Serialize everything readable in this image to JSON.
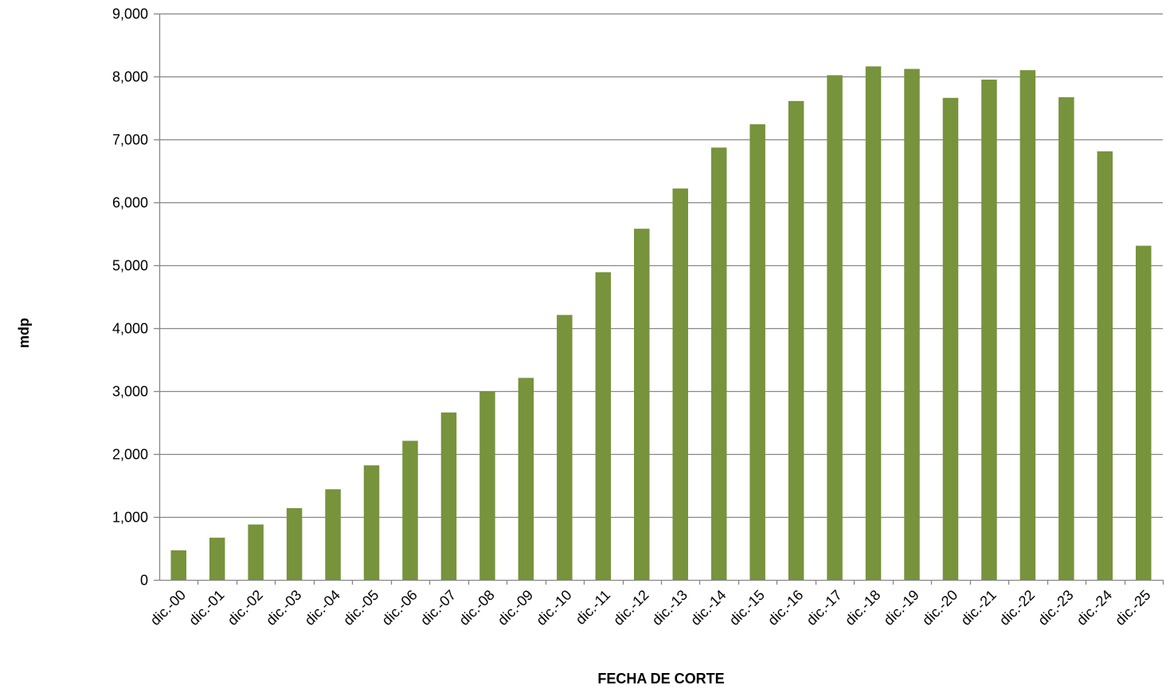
{
  "colors": {
    "bar": "#77933c",
    "grid": "#868686",
    "axis": "#868686",
    "text": "#000000"
  },
  "chart_data": {
    "type": "bar",
    "title": "",
    "xlabel": "FECHA DE CORTE",
    "ylabel": "mdp",
    "ylim": [
      0,
      9000
    ],
    "yticks": [
      0,
      1000,
      2000,
      3000,
      4000,
      5000,
      6000,
      7000,
      8000,
      9000
    ],
    "ytick_labels": [
      "0",
      "1,000",
      "2,000",
      "3,000",
      "4,000",
      "5,000",
      "6,000",
      "7,000",
      "8,000",
      "9,000"
    ],
    "grid": true,
    "legend": "none",
    "categories": [
      "dic.-00",
      "dic.-01",
      "dic.-02",
      "dic.-03",
      "dic.-04",
      "dic.-05",
      "dic.-06",
      "dic.-07",
      "dic.-08",
      "dic.-09",
      "dic.-10",
      "dic.-11",
      "dic.-12",
      "dic.-13",
      "dic.-14",
      "dic.-15",
      "dic.-16",
      "dic.-17",
      "dic.-18",
      "dic.-19",
      "dic.-20",
      "dic.-21",
      "dic.-22",
      "dic.-23",
      "dic.-24",
      "dic.-25"
    ],
    "values": [
      470,
      670,
      880,
      1140,
      1440,
      1820,
      2210,
      2660,
      3000,
      3210,
      4210,
      4890,
      5580,
      6220,
      6870,
      7240,
      7610,
      8020,
      8160,
      8120,
      7660,
      7950,
      8100,
      7670,
      6810,
      5310
    ]
  }
}
